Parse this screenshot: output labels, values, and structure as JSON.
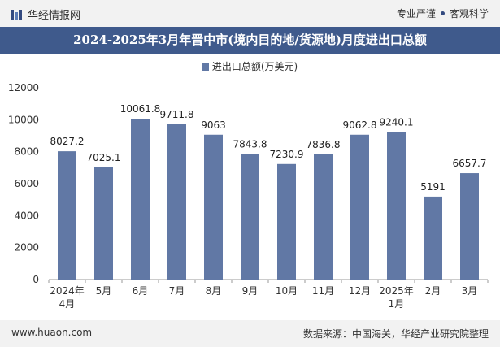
{
  "header": {
    "brand": "华经情报网",
    "tag1": "专业严谨",
    "tag2": "客观科学"
  },
  "footer": {
    "website": "www.huaon.com",
    "source": "数据来源：中国海关，华经产业研究院整理"
  },
  "colors": {
    "bar": "#6178a5",
    "titlebar": "#3f5a8c"
  },
  "chart_data": {
    "type": "bar",
    "title": "2024-2025年3月年晋中市(境内目的地/货源地)月度进出口总额",
    "legend": [
      "进出口总额(万美元)"
    ],
    "categories": [
      "2024年\n4月",
      "5月",
      "6月",
      "7月",
      "8月",
      "9月",
      "10月",
      "11月",
      "12月",
      "2025年\n1月",
      "2月",
      "3月"
    ],
    "series": [
      {
        "name": "进出口总额(万美元)",
        "values": [
          8027.2,
          7025.1,
          10061.8,
          9711.8,
          9063,
          7843.8,
          7230.9,
          7836.8,
          9062.8,
          9240.1,
          5191,
          6657.7
        ],
        "labels": [
          "8027.2",
          "7025.1",
          "10061.8",
          "9711.8",
          "9063",
          "7843.8",
          "7230.9",
          "7836.8",
          "9062.8",
          "9240.1",
          "5191",
          "6657.7"
        ]
      }
    ],
    "yticks": [
      "0",
      "2000",
      "4000",
      "6000",
      "8000",
      "10000",
      "12000"
    ],
    "ylim": [
      0,
      12000
    ],
    "xlabel": "",
    "ylabel": ""
  }
}
